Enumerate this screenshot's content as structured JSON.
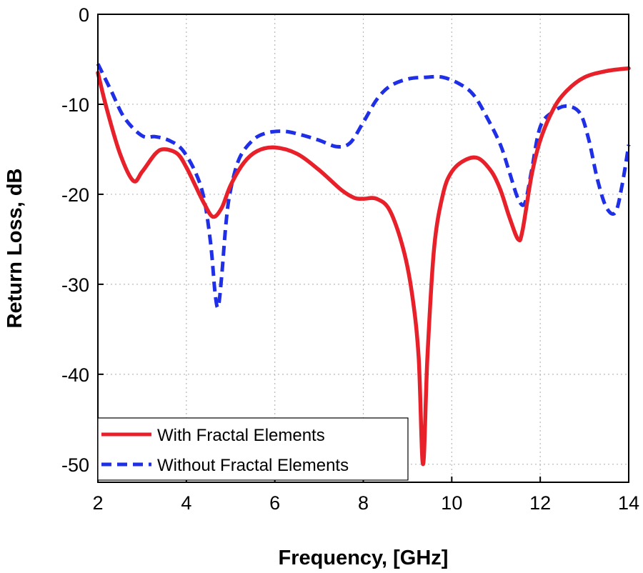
{
  "chart_data": {
    "type": "line",
    "title": "",
    "xlabel": "Frequency, [GHz]",
    "ylabel": "Return Loss, dB",
    "xlim": [
      2,
      14
    ],
    "ylim": [
      -52,
      0
    ],
    "x_ticks": [
      2,
      4,
      6,
      8,
      10,
      12,
      14
    ],
    "y_ticks": [
      0,
      -10,
      -20,
      -30,
      -40,
      -50
    ],
    "grid": true,
    "legend_position": "bottom-left",
    "series": [
      {
        "name": "With Fractal Elements",
        "color": "#e8202a",
        "style": "solid",
        "x": [
          2.0,
          2.2,
          2.5,
          2.8,
          3.0,
          3.3,
          3.5,
          3.8,
          4.0,
          4.2,
          4.4,
          4.6,
          4.8,
          5.0,
          5.3,
          5.6,
          6.0,
          6.5,
          7.0,
          7.5,
          7.8,
          8.0,
          8.3,
          8.6,
          8.9,
          9.1,
          9.25,
          9.35,
          9.45,
          9.6,
          9.8,
          10.0,
          10.3,
          10.6,
          10.9,
          11.1,
          11.3,
          11.5,
          11.6,
          11.8,
          12.0,
          12.3,
          12.6,
          13.0,
          13.5,
          14.0
        ],
        "y": [
          -6.5,
          -10.5,
          -15.5,
          -18.5,
          -17.5,
          -15.5,
          -15.0,
          -15.5,
          -17.0,
          -19.0,
          -21.0,
          -22.5,
          -21.5,
          -19.0,
          -16.5,
          -15.2,
          -14.8,
          -15.5,
          -17.3,
          -19.5,
          -20.4,
          -20.5,
          -20.5,
          -21.8,
          -26.0,
          -31.0,
          -38.0,
          -50.0,
          -38.0,
          -26.0,
          -20.0,
          -17.5,
          -16.2,
          -16.0,
          -17.5,
          -19.5,
          -22.5,
          -25.0,
          -24.0,
          -18.0,
          -14.0,
          -10.5,
          -8.5,
          -7.0,
          -6.3,
          -6.0
        ]
      },
      {
        "name": "Without Fractal Elements",
        "color": "#1f2fe8",
        "style": "dashed",
        "x": [
          2.0,
          2.3,
          2.6,
          3.0,
          3.3,
          3.6,
          3.9,
          4.2,
          4.4,
          4.55,
          4.65,
          4.72,
          4.8,
          4.9,
          5.0,
          5.2,
          5.5,
          5.8,
          6.2,
          6.6,
          7.0,
          7.4,
          7.7,
          8.0,
          8.3,
          8.6,
          9.0,
          9.4,
          9.8,
          10.2,
          10.5,
          10.8,
          11.1,
          11.3,
          11.5,
          11.65,
          11.8,
          12.0,
          12.3,
          12.6,
          12.9,
          13.1,
          13.3,
          13.5,
          13.7,
          13.85,
          14.0
        ],
        "y": [
          -5.5,
          -8.5,
          -11.5,
          -13.5,
          -13.6,
          -14.0,
          -15.0,
          -17.5,
          -20.5,
          -25.5,
          -31.0,
          -32.5,
          -29.0,
          -23.0,
          -19.5,
          -16.0,
          -14.0,
          -13.2,
          -13.0,
          -13.4,
          -14.0,
          -14.7,
          -14.3,
          -12.0,
          -9.5,
          -8.0,
          -7.2,
          -7.0,
          -7.0,
          -7.8,
          -9.0,
          -11.5,
          -14.5,
          -17.5,
          -20.5,
          -21.0,
          -17.5,
          -12.5,
          -10.8,
          -10.2,
          -11.0,
          -14.0,
          -18.5,
          -21.5,
          -22.0,
          -19.0,
          -14.5
        ]
      }
    ]
  }
}
